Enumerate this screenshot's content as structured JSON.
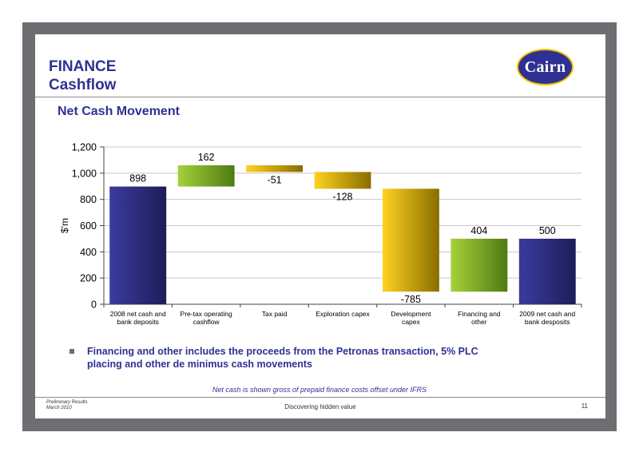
{
  "slide": {
    "title_line1": "FINANCE",
    "title_line2": "Cashflow",
    "subtitle": "Net Cash Movement",
    "logo_text": "Cairn",
    "bullet": "Financing and other includes the proceeds from the Petronas transaction, 5% PLC placing and other de minimus cash movements",
    "note": "Net cash is shown gross of prepaid finance costs offset under IFRS",
    "footer_left_line1": "Preliminary Results",
    "footer_left_line2": "March 2010",
    "footer_center": "Discovering hidden value",
    "page_number": "11"
  },
  "colors": {
    "brand_navy": "#2e3192",
    "frame_grey": "#6d6e71",
    "logo_ring": "#f2c300"
  },
  "chart_data": {
    "type": "bar",
    "subtype": "waterfall",
    "ylabel": "$'m",
    "ylim": [
      0,
      1200
    ],
    "yticks": [
      0,
      200,
      400,
      600,
      800,
      1000,
      1200
    ],
    "ytick_labels": [
      "0",
      "200",
      "400",
      "600",
      "800",
      "1,000",
      "1,200"
    ],
    "grid": true,
    "categories": [
      [
        "2008 net cash and",
        "bank deposits"
      ],
      [
        "Pre-tax operating",
        "cashflow"
      ],
      [
        "Tax paid"
      ],
      [
        "Exploration capex"
      ],
      [
        "Development",
        "capex"
      ],
      [
        "Financing and",
        "other"
      ],
      [
        "2009 net cash and",
        "bank desposits"
      ]
    ],
    "bars": [
      {
        "kind": "total",
        "start": 0,
        "end": 898,
        "label": "898",
        "colors": [
          "#3b3b9e",
          "#1d1d5a"
        ]
      },
      {
        "kind": "increase",
        "start": 898,
        "end": 1060,
        "label": "162",
        "colors": [
          "#a6d13a",
          "#4f7a12"
        ]
      },
      {
        "kind": "decrease",
        "start": 1060,
        "end": 1009,
        "label": "-51",
        "colors": [
          "#ffd21f",
          "#8a6d00"
        ]
      },
      {
        "kind": "decrease",
        "start": 1009,
        "end": 881,
        "label": "-128",
        "colors": [
          "#ffd21f",
          "#8a6d00"
        ]
      },
      {
        "kind": "decrease",
        "start": 881,
        "end": 96,
        "label": "-785",
        "colors": [
          "#ffd21f",
          "#8a6d00"
        ]
      },
      {
        "kind": "increase",
        "start": 96,
        "end": 500,
        "label": "404",
        "colors": [
          "#a6d13a",
          "#4f7a12"
        ]
      },
      {
        "kind": "total",
        "start": 0,
        "end": 500,
        "label": "500",
        "colors": [
          "#3b3b9e",
          "#1d1d5a"
        ]
      }
    ]
  }
}
